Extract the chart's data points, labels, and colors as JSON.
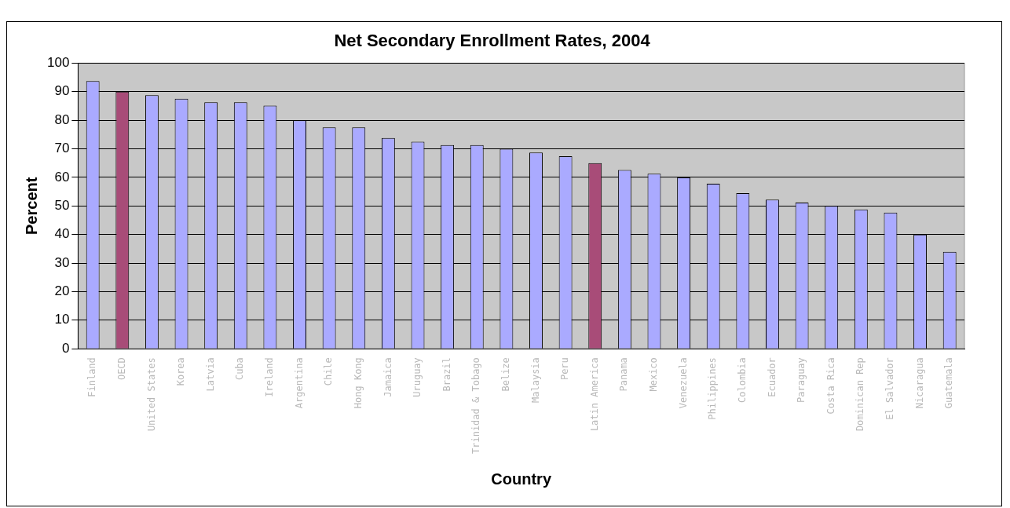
{
  "chart_data": {
    "type": "bar",
    "title": "Net Secondary Enrollment Rates, 2004",
    "xlabel": "Country",
    "ylabel": "Percent",
    "categories": [
      "Finland",
      "OECD",
      "United States",
      "Korea",
      "Latvia",
      "Cuba",
      "Ireland",
      "Argentina",
      "Chile",
      "Hong Kong",
      "Jamaica",
      "Uruguay",
      "Brazil",
      "Trinidad & Tobago",
      "Belize",
      "Malaysia",
      "Peru",
      "Latin America",
      "Panama",
      "Mexico",
      "Venezuela",
      "Philippines",
      "Colombia",
      "Ecuador",
      "Paraguay",
      "Costa Rica",
      "Dominican Rep",
      "El Salvador",
      "Nicaragua",
      "Guatemala"
    ],
    "values": [
      93.7,
      90,
      88.8,
      87.5,
      86.3,
      86.3,
      85.1,
      80,
      77.5,
      77.5,
      73.8,
      72.5,
      71.3,
      71.3,
      70,
      68.7,
      67.4,
      65,
      62.6,
      61.3,
      60,
      57.8,
      54.5,
      52.2,
      51.2,
      50,
      48.8,
      47.7,
      40,
      33.9
    ],
    "colors": [
      "#aaaaff",
      "#a84c78",
      "#aaaaff",
      "#aaaaff",
      "#aaaaff",
      "#aaaaff",
      "#aaaaff",
      "#aaaaff",
      "#aaaaff",
      "#aaaaff",
      "#aaaaff",
      "#aaaaff",
      "#aaaaff",
      "#aaaaff",
      "#aaaaff",
      "#aaaaff",
      "#aaaaff",
      "#a84c78",
      "#aaaaff",
      "#aaaaff",
      "#aaaaff",
      "#aaaaff",
      "#aaaaff",
      "#aaaaff",
      "#aaaaff",
      "#aaaaff",
      "#aaaaff",
      "#aaaaff",
      "#aaaaff",
      "#aaaaff"
    ],
    "ylim": [
      0,
      100
    ],
    "yticks": [
      0,
      10,
      20,
      30,
      40,
      50,
      60,
      70,
      80,
      90,
      100
    ],
    "grid": "y",
    "legend": false
  }
}
